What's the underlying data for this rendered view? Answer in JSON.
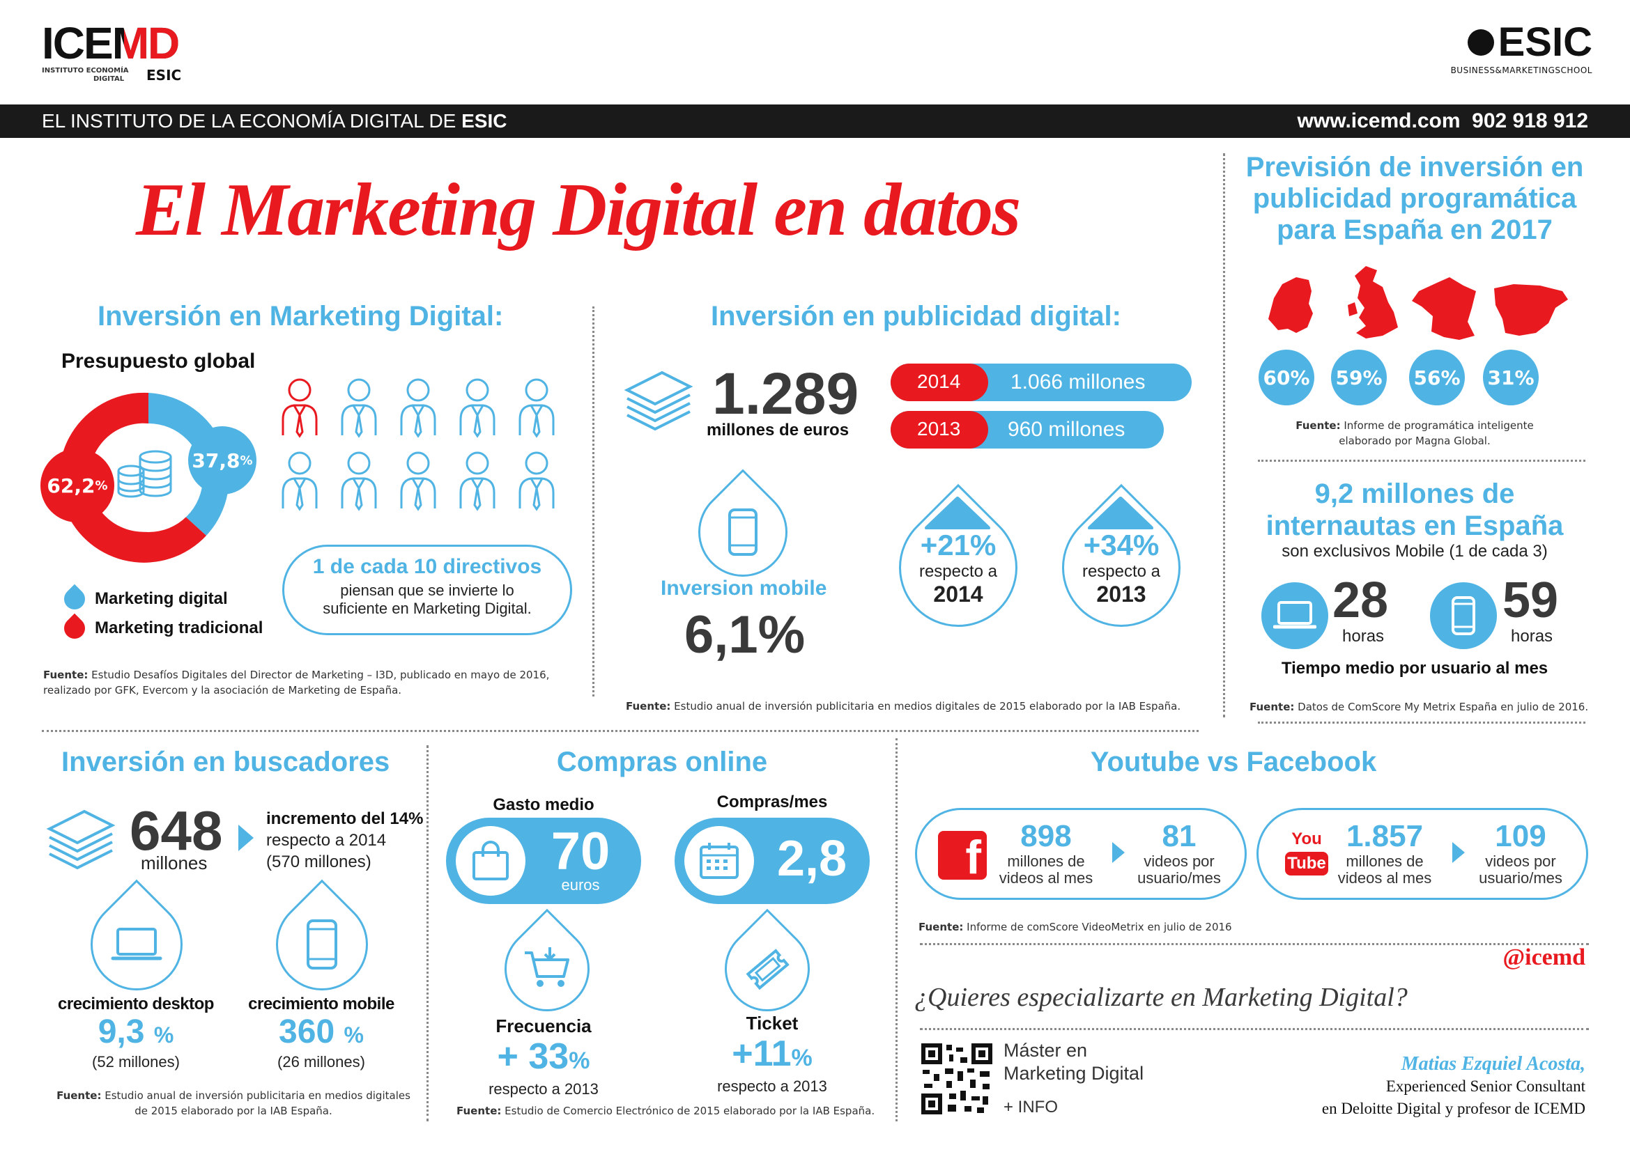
{
  "header": {
    "icemd_logo": "ICEMD",
    "icemd_sub1": "INSTITUTO ECONOMÍA",
    "icemd_sub2": "DIGITAL",
    "icemd_esic": "ESIC",
    "esic_logo": "ESIC",
    "esic_sub": "BUSINESS&MARKETINGSCHOOL",
    "bar_left": "EL INSTITUTO DE LA ECONOMÍA DIGITAL DE ",
    "bar_left_bold": "ESIC",
    "bar_right": "www.icemd.com  902 918 912"
  },
  "title": "El Marketing Digital en datos",
  "inversion_md": {
    "heading": "Inversión en Marketing Digital:",
    "sub": "Presupuesto global",
    "pct_trad": "62,2",
    "pct_digital": "37,8",
    "pct_sign": "%",
    "legend_digital": "Marketing digital",
    "legend_trad": "Marketing tradicional",
    "callout_bold": "1 de cada 10 directivos",
    "callout_text1": "piensan que se invierte lo",
    "callout_text2": "suficiente en Marketing Digital.",
    "source_label": "Fuente:",
    "source1": "Estudio Desafíos Digitales del Director de Marketing – I3D, publicado en mayo de 2016,",
    "source2": "realizado por GFK, Evercom y la asociación de Marketing de España."
  },
  "pub_digital": {
    "heading": "Inversión en publicidad digital:",
    "big": "1.289",
    "big_unit": "millones de euros",
    "year1": "2014",
    "val1": "1.066 millones",
    "year2": "2013",
    "val2": "960 millones",
    "mobile_label": "Inversion mobile",
    "mobile_val": "6,1%",
    "drop1_pct": "+21%",
    "drop1_txt": "respecto a",
    "drop1_year": "2014",
    "drop2_pct": "+34%",
    "drop2_txt": "respecto a",
    "drop2_year": "2013",
    "source_label": "Fuente:",
    "source": "Estudio anual de inversión publicitaria en medios digitales de 2015 elaborado por la IAB España."
  },
  "programatica": {
    "heading1": "Previsión de inversión en",
    "heading2": "publicidad programática",
    "heading3": "para España en 2017",
    "countries": [
      {
        "name": "netherlands",
        "pct": "60%"
      },
      {
        "name": "uk",
        "pct": "59%"
      },
      {
        "name": "france",
        "pct": "56%"
      },
      {
        "name": "spain",
        "pct": "31%"
      }
    ],
    "source_label": "Fuente:",
    "source1": "Informe de programática inteligente",
    "source2": "elaborado por Magna Global."
  },
  "internautas": {
    "heading1": "9,2 millones de",
    "heading2": "internautas en España",
    "sub": "son exclusivos Mobile (1 de cada 3)",
    "desktop_hours": "28",
    "mobile_hours": "59",
    "hours_label": "horas",
    "footer": "Tiempo medio por usuario al mes",
    "source_label": "Fuente:",
    "source": "Datos de ComScore My Metrix España en julio de 2016."
  },
  "buscadores": {
    "heading": "Inversión en buscadores",
    "big": "648",
    "big_unit": "millones",
    "inc_bold": "incremento del 14%",
    "inc_txt1": "respecto a 2014",
    "inc_txt2": "(570 millones)",
    "desk_label": "crecimiento desktop",
    "desk_val": "9,3",
    "desk_sub": "(52 millones)",
    "mob_label": "crecimiento mobile",
    "mob_val": "360",
    "mob_sub": "(26 millones)",
    "pct": "%",
    "source_label": "Fuente:",
    "source1": "Estudio anual de inversión publicitaria en medios digitales",
    "source2": "de 2015 elaborado por la IAB España."
  },
  "compras": {
    "heading": "Compras online",
    "gasto_label": "Gasto medio",
    "gasto_val": "70",
    "gasto_unit": "euros",
    "compras_label": "Compras/mes",
    "compras_val": "2,8",
    "freq_label": "Frecuencia",
    "freq_val": "+ 33",
    "freq_sub": "respecto a 2013",
    "ticket_label": "Ticket",
    "ticket_val": "+11",
    "ticket_sub": "respecto a 2013",
    "pct": "%",
    "source_label": "Fuente:",
    "source": "Estudio de Comercio Electrónico de 2015 elaborado por la IAB España."
  },
  "yt_fb": {
    "heading": "Youtube vs Facebook",
    "fb_icon": "f",
    "fb_videos": "898",
    "fb_videos_l1": "millones de",
    "fb_videos_l2": "videos al mes",
    "fb_per": "81",
    "fb_per_l1": "videos por",
    "fb_per_l2": "usuario/mes",
    "yt_you": "You",
    "yt_tube": "Tube",
    "yt_videos": "1.857",
    "yt_videos_l1": "millones de",
    "yt_videos_l2": "videos al mes",
    "yt_per": "109",
    "yt_per_l1": "videos por",
    "yt_per_l2": "usuario/mes",
    "source_label": "Fuente:",
    "source": "Informe de comScore VideoMetrix en julio de 2016"
  },
  "footer": {
    "handle": "@icemd",
    "question": "¿Quieres especializarte en Marketing Digital?",
    "master1": "Máster en",
    "master2": "Marketing Digital",
    "info": "+ INFO",
    "author": "Matias Ezquiel Acosta,",
    "role1": "Experienced Senior Consultant",
    "role2": "en Deloitte Digital y profesor de ICEMD"
  },
  "colors": {
    "blue": "#4fb3e3",
    "red": "#e8191f",
    "dark": "#3a3a3a",
    "bar": "#1a1a1a"
  }
}
